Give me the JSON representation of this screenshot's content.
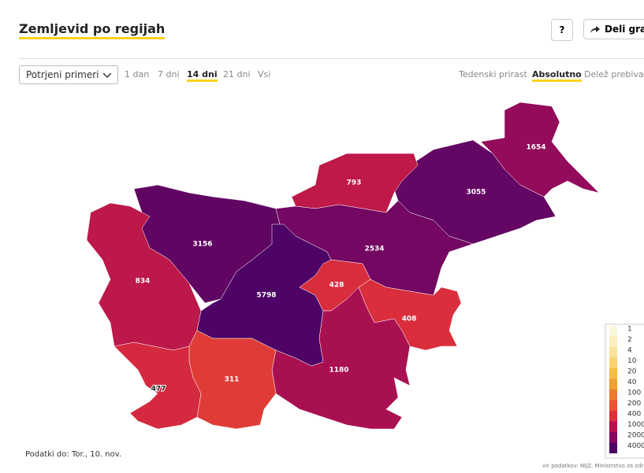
{
  "header": {
    "title": "Zemljevid po regijah",
    "help_button": "?",
    "share_button": "Deli graf"
  },
  "controls": {
    "dropdown": "Potrjeni primeri",
    "periods": [
      {
        "label": "1 dan"
      },
      {
        "label": "7 dni"
      },
      {
        "label": "14 dni",
        "active": true
      },
      {
        "label": "21 dni"
      },
      {
        "label": "Vsi"
      }
    ],
    "modes": [
      {
        "label": "Tedenski prirast"
      },
      {
        "label": "Absolutno",
        "active": true
      },
      {
        "label": "Delež prebivals"
      }
    ]
  },
  "regions": [
    {
      "value": 1654
    },
    {
      "value": 3055
    },
    {
      "value": 793
    },
    {
      "value": 2534
    },
    {
      "value": 3156
    },
    {
      "value": 834
    },
    {
      "value": 5798
    },
    {
      "value": 428
    },
    {
      "value": 408
    },
    {
      "value": 1180
    },
    {
      "value": 311
    },
    {
      "value": 477
    }
  ],
  "legend": [
    {
      "value": 1,
      "color": "#fcf6d9"
    },
    {
      "value": 2,
      "color": "#fbeec0"
    },
    {
      "value": 4,
      "color": "#f9e29a"
    },
    {
      "value": 10,
      "color": "#f8d26a"
    },
    {
      "value": 20,
      "color": "#f5bb45"
    },
    {
      "value": 40,
      "color": "#f29e33"
    },
    {
      "value": 100,
      "color": "#ed7a2f"
    },
    {
      "value": 200,
      "color": "#e8542f"
    },
    {
      "value": 400,
      "color": "#db2f3c"
    },
    {
      "value": 1000,
      "color": "#b4124e"
    },
    {
      "value": 2000,
      "color": "#87085e"
    },
    {
      "value": 4000,
      "color": "#4d0466"
    }
  ],
  "footer": {
    "date": "Podatki do: Tor., 10. nov.",
    "source": "vir podatkov: NIJZ, Ministrstvo za zdr"
  }
}
